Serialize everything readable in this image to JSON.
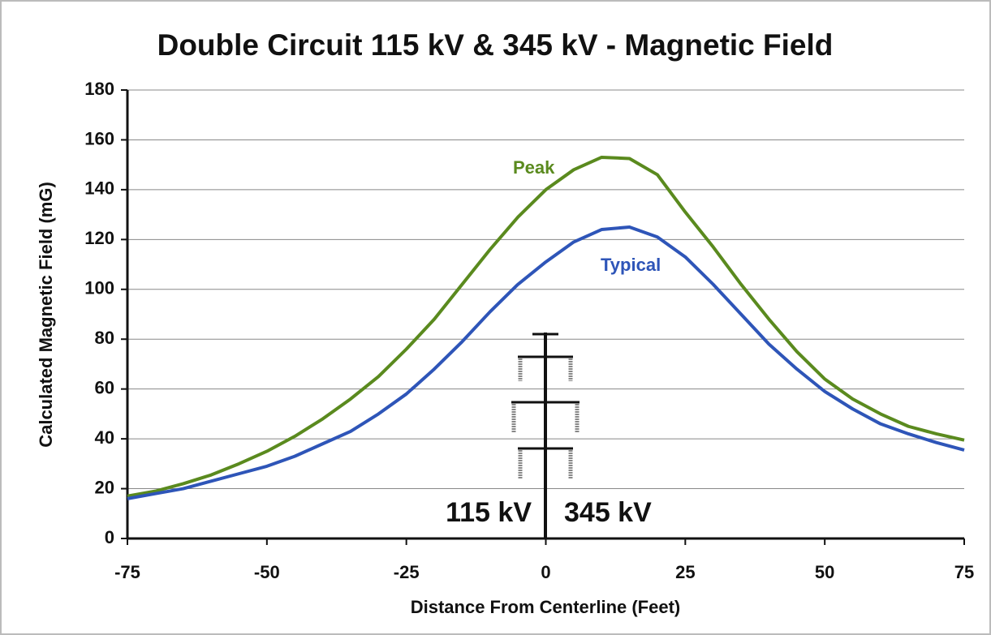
{
  "chart_data": {
    "type": "line",
    "title": "Double Circuit 115 kV & 345 kV - Magnetic Field",
    "x_label": "Distance From Centerline (Feet)",
    "y_label": "Calculated Magnetic Field (mG)",
    "x": [
      -75,
      -70,
      -65,
      -60,
      -55,
      -50,
      -45,
      -40,
      -35,
      -30,
      -25,
      -20,
      -15,
      -10,
      -5,
      0,
      5,
      10,
      15,
      20,
      25,
      30,
      35,
      40,
      45,
      50,
      55,
      60,
      65,
      70,
      75
    ],
    "series": [
      {
        "name": "Peak",
        "color": "#5a8a1e",
        "values": [
          17,
          19,
          22,
          25.5,
          30,
          35,
          41,
          48,
          56,
          65,
          76,
          88,
          102,
          116,
          129,
          140,
          148,
          153,
          152.5,
          146,
          131,
          117,
          102,
          88,
          75,
          64,
          56,
          50,
          45,
          42,
          39.5
        ]
      },
      {
        "name": "Typical",
        "color": "#2e55b8",
        "values": [
          16,
          18,
          20,
          23,
          26,
          29,
          33,
          38,
          43,
          50,
          58,
          68,
          79,
          91,
          102,
          111,
          119,
          124,
          125,
          121,
          113,
          102,
          90,
          78,
          68,
          59,
          52,
          46,
          42,
          38.5,
          35.5
        ]
      }
    ],
    "annotations": [
      "115 kV",
      "345 kV"
    ],
    "xlim": [
      -75,
      75
    ],
    "xticks": [
      -75,
      -50,
      -25,
      0,
      25,
      50,
      75
    ],
    "ylim": [
      0,
      180
    ],
    "yticks": [
      0,
      20,
      40,
      60,
      80,
      100,
      120,
      140,
      160,
      180
    ],
    "grid": true
  }
}
